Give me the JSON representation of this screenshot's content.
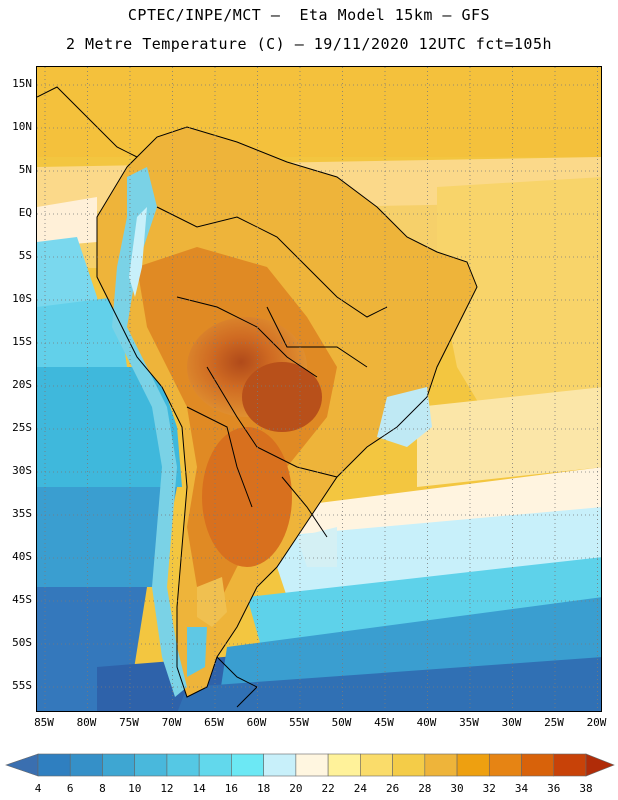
{
  "header": {
    "title_line1": "CPTEC/INPE/MCT –  Eta Model 15km – GFS",
    "title_line2": "2 Metre Temperature (C) – 19/11/2020 12UTC fct=105h"
  },
  "map": {
    "lat_labels": [
      "15N",
      "10N",
      "5N",
      "EQ",
      "5S",
      "10S",
      "15S",
      "20S",
      "25S",
      "30S",
      "35S",
      "40S",
      "45S",
      "50S",
      "55S"
    ],
    "lon_labels": [
      "85W",
      "80W",
      "75W",
      "70W",
      "65W",
      "60W",
      "55W",
      "50W",
      "45W",
      "40W",
      "35W",
      "30W",
      "25W",
      "20W"
    ]
  },
  "colorbar": {
    "labels": [
      "4",
      "6",
      "8",
      "10",
      "12",
      "14",
      "16",
      "18",
      "20",
      "22",
      "24",
      "26",
      "28",
      "30",
      "32",
      "34",
      "36",
      "38"
    ],
    "colors": [
      "#3a6fb0",
      "#2f7fc0",
      "#3590c8",
      "#3ea6d2",
      "#49b8dc",
      "#55c8e4",
      "#62d8ec",
      "#6ce8f4",
      "#c8f0fa",
      "#fff6e0",
      "#fff29a",
      "#fadc6a",
      "#f4cc48",
      "#eeb43a",
      "#eea010",
      "#e68414",
      "#d8620a",
      "#c84208",
      "#b02c08"
    ]
  }
}
